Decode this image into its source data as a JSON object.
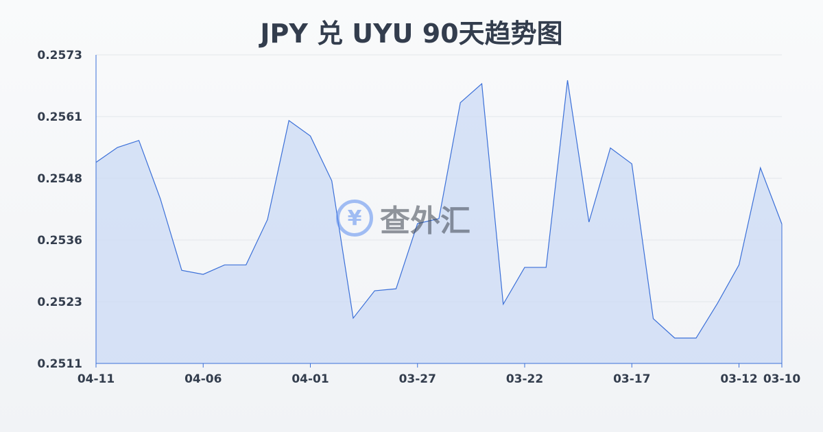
{
  "title": "JPY 兑 UYU 90天趋势图",
  "watermark": {
    "text": "查外汇",
    "icon": "yen-exchange-icon"
  },
  "chart_data": {
    "type": "area",
    "title": "JPY 兑 UYU 90天趋势图",
    "xlabel": "",
    "ylabel": "",
    "ylim": [
      0.2511,
      0.2573
    ],
    "yticks": [
      "0.2573",
      "0.2561",
      "0.2548",
      "0.2536",
      "0.2523",
      "0.2511"
    ],
    "xticks": [
      "04-11",
      "04-06",
      "04-01",
      "03-27",
      "03-22",
      "03-17",
      "03-12",
      "03-10"
    ],
    "grid": true,
    "line_color": "#3a6fd8",
    "fill_color": "#c9d8f5",
    "x": [
      "04-11",
      "04-10",
      "04-09",
      "04-08",
      "04-07",
      "04-06",
      "04-05",
      "04-04",
      "04-03",
      "04-02",
      "04-01",
      "03-31",
      "03-30",
      "03-29",
      "03-28",
      "03-27",
      "03-26",
      "03-25",
      "03-24",
      "03-23",
      "03-22",
      "03-21",
      "03-20",
      "03-19",
      "03-18",
      "03-17",
      "03-16",
      "03-15",
      "03-14",
      "03-13",
      "03-12",
      "03-11",
      "03-10"
    ],
    "values": [
      0.25514,
      0.25544,
      0.25558,
      0.25441,
      0.25297,
      0.25289,
      0.25308,
      0.25308,
      0.25399,
      0.25598,
      0.25567,
      0.25477,
      0.25201,
      0.25256,
      0.2526,
      0.25391,
      0.25401,
      0.25634,
      0.25672,
      0.25229,
      0.25303,
      0.25303,
      0.25679,
      0.25394,
      0.25543,
      0.25511,
      0.252,
      0.25161,
      0.25161,
      0.25231,
      0.25308,
      0.25503,
      0.2539
    ]
  }
}
